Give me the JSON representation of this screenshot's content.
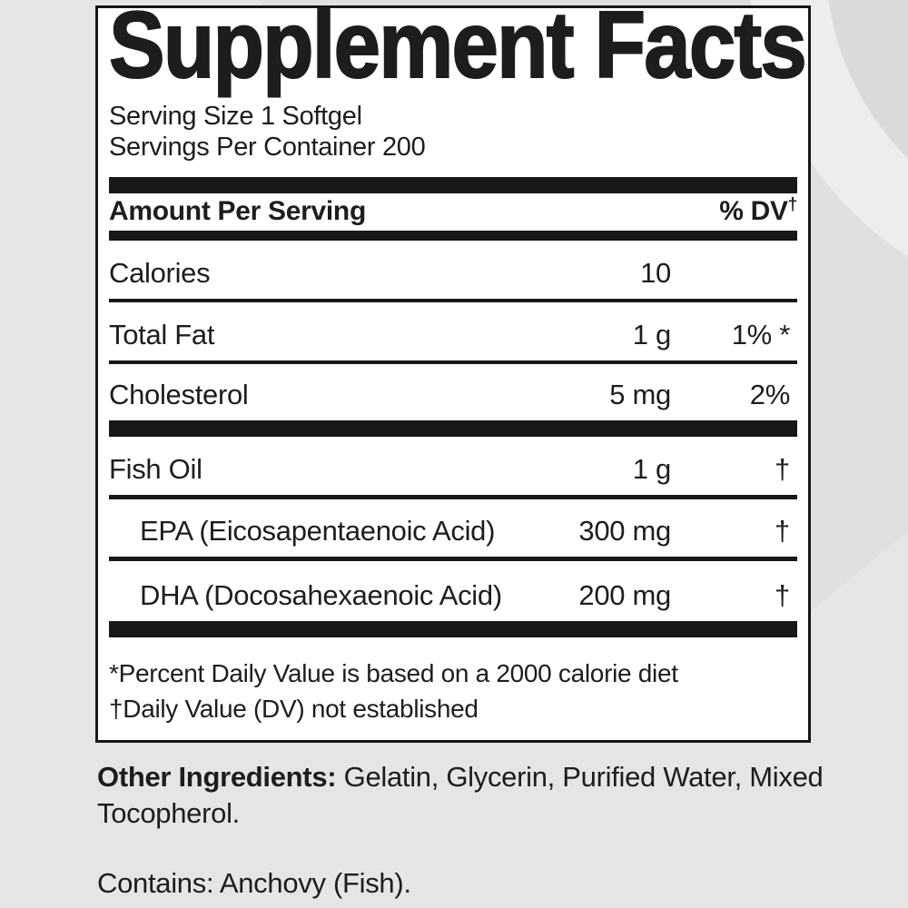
{
  "panel": {
    "title": "Supplement Facts",
    "serving_size": "Serving Size 1 Softgel",
    "servings_per_container": "Servings Per Container 200",
    "columns": {
      "amount_header": "Amount Per Serving",
      "dv_header": "% DV",
      "dv_dagger": "†"
    },
    "rows": [
      {
        "name": "Calories",
        "amount": "10",
        "dv": ""
      },
      {
        "name": "Total Fat",
        "amount": "1 g",
        "dv": "1% *"
      },
      {
        "name": "Cholesterol",
        "amount": "5 mg",
        "dv": "2%"
      },
      {
        "name": "Fish Oil",
        "amount": "1 g",
        "dv": "†"
      },
      {
        "name": "EPA (Eicosapentaenoic Acid)",
        "amount": "300 mg",
        "dv": "†"
      },
      {
        "name": "DHA (Docosahexaenoic Acid)",
        "amount": "200 mg",
        "dv": "†"
      }
    ],
    "footnotes": [
      "*Percent Daily Value is based on a 2000 calorie diet",
      "†Daily Value (DV) not established"
    ]
  },
  "below": {
    "other_ingredients_label": "Other Ingredients:",
    "other_ingredients_text": "Gelatin, Glycerin, Purified Water, Mixed Tocopherol.",
    "contains": "Contains: Anchovy (Fish)."
  },
  "colors": {
    "ink": "#1d1d1d",
    "panel_bg": "#ffffff",
    "page_bg": "#e5e5e6",
    "swoosh_mid": "#dfe0e0",
    "swoosh_ring": "#ededee",
    "swoosh_disk": "#d9dadb"
  }
}
